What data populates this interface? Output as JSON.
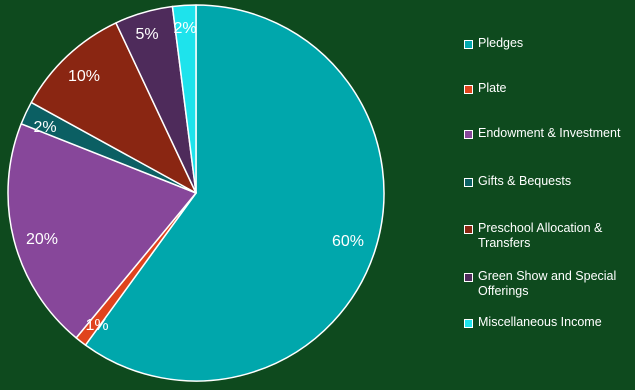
{
  "chart_data": {
    "type": "pie",
    "slices": [
      {
        "label": "Pledges",
        "value": 60,
        "value_label": "60%",
        "color": "#00a7ac"
      },
      {
        "label": "Plate",
        "value": 1,
        "value_label": "1%",
        "color": "#e0431d"
      },
      {
        "label": "Endowment & Investment",
        "value": 20,
        "value_label": "20%",
        "color": "#87479a"
      },
      {
        "label": "Gifts & Bequests",
        "value": 2,
        "value_label": "2%",
        "color": "#0b5f63"
      },
      {
        "label": "Preschool Allocation & Transfers",
        "value": 10,
        "value_label": "10%",
        "color": "#8a2612"
      },
      {
        "label": "Green Show and Special Offerings",
        "value": 5,
        "value_label": "5%",
        "color": "#4e2b5b"
      },
      {
        "label": "Miscellaneous Income",
        "value": 2,
        "value_label": "2%",
        "color": "#1ee3ec"
      }
    ],
    "start_angle_deg": 0,
    "direction": "clockwise",
    "slice_border_color": "#ffffff",
    "legend_position": "right"
  },
  "colors": {
    "background": "#0e4a1e",
    "text": "#ffffff"
  }
}
